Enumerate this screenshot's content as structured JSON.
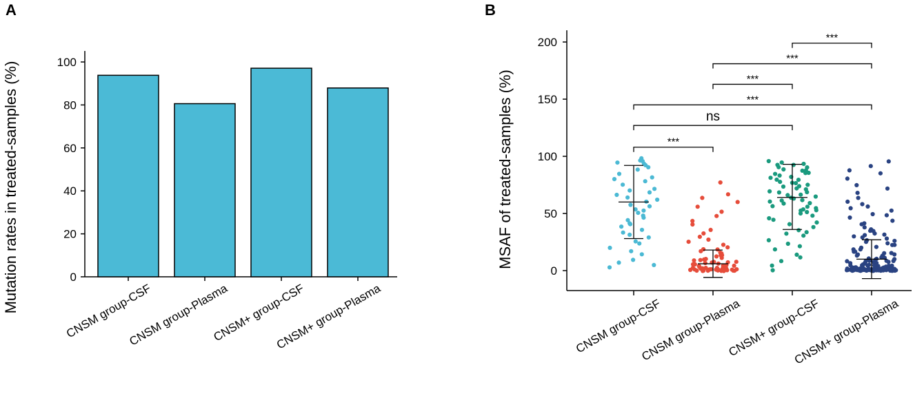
{
  "chart_data": [
    {
      "panel": "A",
      "type": "bar",
      "title": "",
      "xlabel": "",
      "ylabel": "Mutation rates in treated-samples (%)",
      "ylim": [
        0,
        100
      ],
      "yticks": [
        "0",
        "20",
        "40",
        "60",
        "80",
        "100"
      ],
      "categories": [
        "CNSM group-CSF",
        "CNSM group-Plasma",
        "CNSM+ group-CSF",
        "CNSM+ group-Plasma"
      ],
      "values": [
        93.8,
        80.6,
        97.1,
        87.9
      ],
      "bar_color": "#4bbad6"
    },
    {
      "panel": "B",
      "type": "scatter",
      "title": "",
      "xlabel": "",
      "ylabel": "MSAF of treated-samples (%)",
      "ylim": [
        -10,
        200
      ],
      "yticks": [
        "0",
        "50",
        "100",
        "150",
        "200"
      ],
      "categories": [
        "CNSM group-CSF",
        "CNSM group-Plasma",
        "CNSM+ group-CSF",
        "CNSM+ group-Plasma"
      ],
      "series": [
        {
          "name": "CNSM group-CSF",
          "color": "#4bb9d4",
          "mean": 60,
          "sd_low": 28,
          "sd_high": 92,
          "values": [
            98,
            97,
            96,
            95,
            94,
            92,
            90,
            88,
            85,
            82,
            80,
            78,
            75,
            72,
            70,
            68,
            66,
            64,
            62,
            60,
            58,
            56,
            54,
            52,
            50,
            48,
            46,
            44,
            42,
            40,
            38,
            35,
            33,
            31,
            29,
            26,
            24,
            20,
            17,
            14,
            10,
            7,
            5,
            3
          ]
        },
        {
          "name": "CNSM group-Plasma",
          "color": "#e64c3a",
          "mean": 6,
          "sd_low": -6,
          "sd_high": 18,
          "values": [
            77,
            67,
            64,
            60,
            56,
            52,
            48,
            44,
            40,
            36,
            33,
            30,
            27,
            25,
            23,
            21,
            19,
            18,
            17,
            16,
            15,
            14,
            13,
            12,
            11,
            10,
            10,
            9,
            9,
            8,
            8,
            7,
            7,
            6,
            6,
            6,
            5,
            5,
            5,
            4,
            4,
            4,
            3,
            3,
            3,
            3,
            2,
            2,
            2,
            2,
            2,
            1,
            1,
            1,
            1,
            1,
            1,
            1,
            0.5,
            0.5,
            0.5,
            0.5,
            0.5,
            0.5,
            0.5,
            0.5,
            0.5,
            0.3,
            0.3,
            0.3,
            0.3,
            0.3,
            0.3,
            0.3,
            0.3
          ]
        },
        {
          "name": "CNSM+ group-CSF",
          "color": "#1a9a7e",
          "mean": 64,
          "sd_low": 36,
          "sd_high": 93,
          "values": [
            96,
            95,
            94,
            93,
            92,
            91,
            90,
            89,
            88,
            87,
            86,
            85,
            84,
            83,
            82,
            81,
            80,
            79,
            78,
            77,
            76,
            75,
            74,
            73,
            72,
            71,
            70,
            69,
            68,
            67,
            66,
            65,
            64,
            63,
            62,
            61,
            60,
            59,
            58,
            57,
            56,
            55,
            54,
            53,
            52,
            51,
            50,
            48,
            46,
            44,
            42,
            40,
            38,
            36,
            34,
            32,
            30,
            27,
            24,
            21,
            18,
            14,
            11,
            8,
            4,
            0
          ]
        },
        {
          "name": "CNSM+ group-Plasma",
          "color": "#2a4382",
          "mean": 10,
          "sd_low": -7,
          "sd_high": 27,
          "values": [
            95,
            92,
            88,
            85,
            80,
            75,
            72,
            68,
            64,
            60,
            58,
            56,
            54,
            52,
            50,
            48,
            46,
            44,
            42,
            40,
            38,
            36,
            35,
            34,
            33,
            32,
            31,
            30,
            29,
            28,
            27,
            26,
            25,
            24,
            23,
            22,
            21,
            20,
            19,
            18,
            17,
            16,
            15,
            15,
            14,
            14,
            13,
            13,
            12,
            12,
            11,
            11,
            10,
            10,
            10,
            9,
            9,
            9,
            8,
            8,
            8,
            7,
            7,
            7,
            7,
            6,
            6,
            6,
            6,
            5,
            5,
            5,
            5,
            5,
            4,
            4,
            4,
            4,
            4,
            4,
            3,
            3,
            3,
            3,
            3,
            3,
            3,
            2,
            2,
            2,
            2,
            2,
            2,
            2,
            2,
            2,
            2,
            1.5,
            1.5,
            1.5,
            1.5,
            1.5,
            1.5,
            1.5,
            1.5,
            1.5,
            1.5,
            1.5,
            1,
            1,
            1,
            1,
            1,
            1,
            1,
            1,
            1,
            1,
            1,
            1,
            1,
            1,
            1,
            1,
            0.5,
            0.5,
            0.5,
            0.5,
            0.5,
            0.5,
            0.5,
            0.5,
            0.5,
            0.5,
            0.5,
            0.5,
            0.5,
            0.5,
            0.5,
            0.5,
            0.5,
            0.5,
            0.5,
            0.5,
            0.5,
            0.5,
            0.5,
            0.5,
            0.5,
            0.5,
            0.5,
            0.5,
            0.3,
            0.3,
            0.3,
            0.3,
            0.3,
            0.3,
            0.3,
            0.3,
            0.3,
            0.3,
            0.3,
            0.3,
            0.3,
            0.3,
            0.3,
            0.3,
            0.3,
            0.3,
            0.3,
            0.3,
            0.3,
            0.3,
            0.3,
            0.3,
            0.3,
            0.3,
            0.3,
            0.3,
            0.3,
            0.3
          ]
        }
      ],
      "annotations": [
        {
          "from": "CNSM group-CSF",
          "to": "CNSM group-Plasma",
          "y": 108,
          "label": "***"
        },
        {
          "from": "CNSM group-CSF",
          "to": "CNSM+ group-CSF",
          "y": 127,
          "label": "ns"
        },
        {
          "from": "CNSM group-CSF",
          "to": "CNSM+ group-Plasma",
          "y": 145,
          "label": "***"
        },
        {
          "from": "CNSM group-Plasma",
          "to": "CNSM+ group-CSF",
          "y": 163,
          "label": "***"
        },
        {
          "from": "CNSM group-Plasma",
          "to": "CNSM+ group-Plasma",
          "y": 181,
          "label": "***"
        },
        {
          "from": "CNSM+ group-CSF",
          "to": "CNSM+ group-Plasma",
          "y": 199,
          "label": "***"
        }
      ]
    }
  ]
}
